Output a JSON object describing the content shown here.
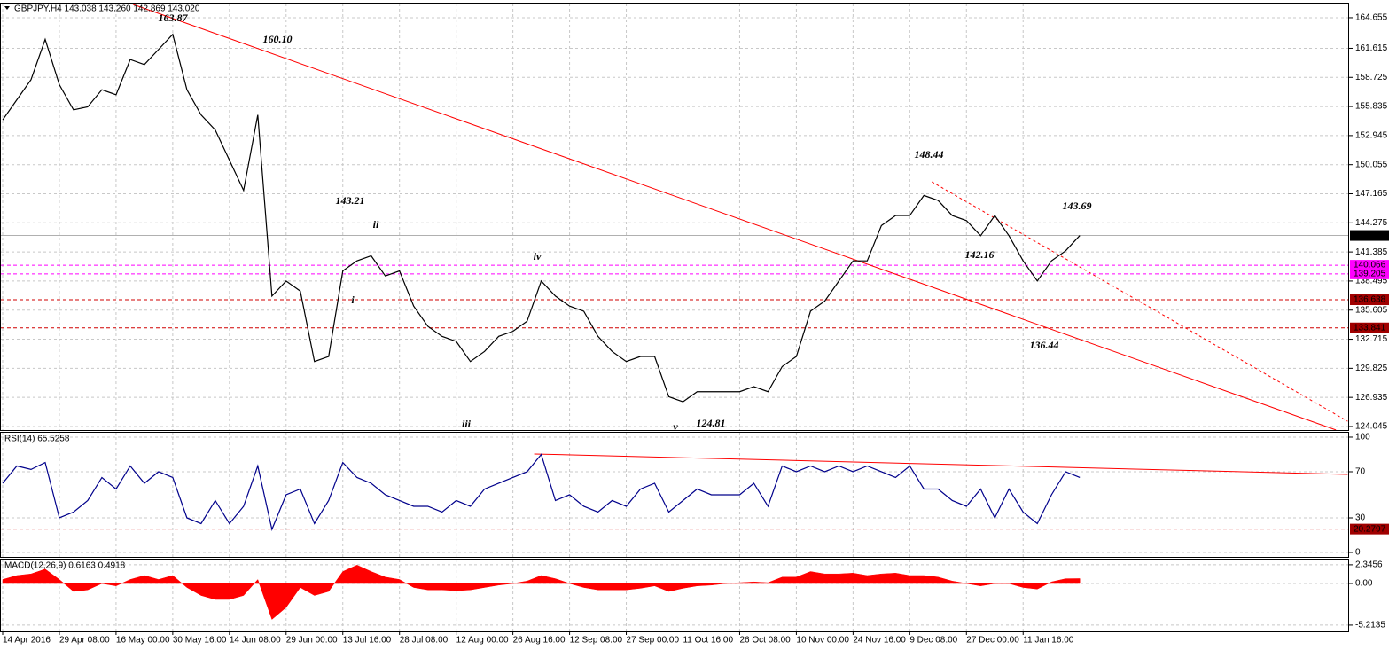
{
  "chart_data": [
    {
      "type": "line",
      "title": "GBPJPY,H4  143.038 143.260 142.869 143.020",
      "color": "#000000",
      "values": [
        154.5,
        156.5,
        158.5,
        162.5,
        158,
        155.5,
        155.8,
        157.5,
        157,
        160.5,
        160,
        161.5,
        163,
        157.5,
        155,
        153.5,
        150.5,
        147.5,
        155,
        137,
        138.5,
        137.5,
        130.5,
        131,
        139.5,
        140.5,
        141,
        139,
        139.5,
        136,
        134,
        133,
        132.5,
        130.5,
        131.5,
        133,
        133.5,
        134.5,
        138.5,
        137,
        136,
        135.5,
        133,
        131.5,
        130.5,
        131,
        131,
        127,
        126.5,
        127.5,
        127.5,
        127.5,
        127.5,
        128,
        127.5,
        130,
        131,
        135.5,
        136.5,
        138.5,
        140.5,
        140.5,
        144,
        145,
        145,
        147,
        146.5,
        145,
        144.5,
        143,
        145,
        143,
        140.5,
        138.5,
        140.5,
        141.5,
        143.02
      ],
      "xlim": [
        0,
        95
      ],
      "xticks": [
        {
          "value": 0,
          "label": "14 Apr 2016"
        },
        {
          "value": 4,
          "label": "29 Apr 08:00"
        },
        {
          "value": 8,
          "label": "16 May 00:00"
        },
        {
          "value": 12,
          "label": "30 May 16:00"
        },
        {
          "value": 16,
          "label": "14 Jun 08:00"
        },
        {
          "value": 20,
          "label": "29 Jun 00:00"
        },
        {
          "value": 24,
          "label": "13 Jul 16:00"
        },
        {
          "value": 28,
          "label": "28 Jul 08:00"
        },
        {
          "value": 32,
          "label": "12 Aug 00:00"
        },
        {
          "value": 36,
          "label": "26 Aug 16:00"
        },
        {
          "value": 40,
          "label": "12 Sep 08:00"
        },
        {
          "value": 44,
          "label": "27 Sep 00:00"
        },
        {
          "value": 48,
          "label": "11 Oct 16:00"
        },
        {
          "value": 52,
          "label": "26 Oct 08:00"
        },
        {
          "value": 56,
          "label": "10 Nov 00:00"
        },
        {
          "value": 60,
          "label": "24 Nov 16:00"
        },
        {
          "value": 64,
          "label": "9 Dec 08:00"
        },
        {
          "value": 68,
          "label": "27 Dec 00:00"
        },
        {
          "value": 72,
          "label": "11 Jan 16:00"
        }
      ],
      "ylim": [
        123.69,
        166.06
      ],
      "yticks": [
        164.655,
        161.615,
        158.725,
        155.835,
        152.945,
        150.055,
        147.165,
        144.275,
        141.385,
        138.495,
        135.605,
        132.715,
        129.825,
        126.935,
        124.045
      ],
      "grid": true,
      "levels": [
        {
          "value": 143.02,
          "label": "143.020",
          "color": "#b0b0b0",
          "bg": "#000000",
          "style": "solid"
        },
        {
          "value": 140.066,
          "color": "#ff00ff",
          "bg": "#ff00ff",
          "style": "dashed"
        },
        {
          "value": 139.205,
          "color": "#ff00ff",
          "bg": "#ff00ff",
          "style": "dashed"
        },
        {
          "value": 136.638,
          "color": "#d00000",
          "bg": "#a00000",
          "style": "dashed"
        },
        {
          "value": 133.841,
          "color": "#d00000",
          "bg": "#a00000",
          "style": "dashed"
        }
      ],
      "trendlines": [
        {
          "x": [
            9.19,
            94.07
          ],
          "y": [
            165.98,
            123.7
          ],
          "color": "#ff0000",
          "style": "solid"
        },
        {
          "x": [
            65.56,
            94.9
          ],
          "y": [
            148.35,
            124.56
          ],
          "color": "#ff0000",
          "style": "dashed"
        }
      ],
      "annotations": [
        {
          "text": "163.87",
          "color": "#b00000"
        },
        {
          "text": "160.10",
          "color": "#b00000"
        },
        {
          "text": "143.21",
          "color": "#b00000"
        },
        {
          "text": "ii",
          "color": "#b00000"
        },
        {
          "text": "i",
          "color": "#b00000"
        },
        {
          "text": "iv",
          "color": "#b00000"
        },
        {
          "text": "iii",
          "color": "#b00000"
        },
        {
          "text": "v",
          "color": "#b00000"
        },
        {
          "text": "124.81",
          "color": "#9a4fa8"
        },
        {
          "text": "148.44",
          "color": "#9a4fa8"
        },
        {
          "text": "143.69",
          "color": "#9a4fa8"
        },
        {
          "text": "142.16",
          "color": "#9a4fa8"
        },
        {
          "text": "136.44",
          "color": "#9a4fa8"
        }
      ]
    },
    {
      "type": "line",
      "title": "RSI(14) 65.5258",
      "color": "#00008b",
      "values": [
        60,
        75,
        72,
        78,
        30,
        35,
        45,
        65,
        55,
        75,
        60,
        70,
        65,
        30,
        25,
        45,
        25,
        40,
        75,
        20,
        50,
        55,
        25,
        45,
        78,
        65,
        60,
        50,
        45,
        40,
        40,
        35,
        45,
        40,
        55,
        60,
        65,
        70,
        85,
        45,
        50,
        40,
        35,
        45,
        40,
        55,
        60,
        35,
        45,
        55,
        50,
        50,
        50,
        60,
        40,
        75,
        70,
        75,
        70,
        75,
        70,
        75,
        70,
        65,
        75,
        55,
        55,
        45,
        40,
        55,
        30,
        55,
        35,
        25,
        50,
        70,
        65
      ],
      "ylim": [
        -3.85,
        104.6
      ],
      "yticks": [
        100,
        70,
        30,
        0
      ],
      "grid": true,
      "levels": [
        {
          "value": 20.2797,
          "color": "#d00000",
          "bg": "#a00000",
          "style": "dashed"
        }
      ],
      "trendlines": [
        {
          "x": [
            37.5,
            94.9
          ],
          "y": [
            85.4,
            67.7
          ],
          "color": "#ff0000",
          "style": "solid"
        }
      ]
    },
    {
      "type": "area",
      "title": "MACD(12,26,9) 0.6163 0.4918",
      "color": "#ff0000",
      "values": [
        0.5,
        1,
        1.2,
        1.8,
        0.5,
        -1,
        -0.8,
        0,
        -0.3,
        0.5,
        1,
        0.5,
        1,
        -0.5,
        -1.5,
        -2,
        -2,
        -1.5,
        0.5,
        -4.5,
        -3,
        -0.5,
        -1.5,
        -1,
        1.5,
        2.3,
        1.5,
        0.8,
        0.5,
        -0.5,
        -0.8,
        -0.8,
        -0.9,
        -0.8,
        -0.5,
        -0.2,
        0,
        0.3,
        1,
        0.6,
        0,
        -0.5,
        -0.8,
        -0.8,
        -0.8,
        -0.6,
        -0.3,
        -1,
        -0.6,
        -0.3,
        -0.2,
        0,
        0.1,
        0.2,
        0.1,
        0.8,
        0.8,
        1.5,
        1.2,
        1.2,
        1.3,
        1,
        1.2,
        1.3,
        1,
        1,
        0.8,
        0.3,
        0,
        -0.3,
        0,
        0,
        -0.5,
        -0.7,
        0.2,
        0.6,
        0.6163
      ],
      "ylim": [
        -6,
        3
      ],
      "yticks": [
        2.3456,
        {
          "value": 0,
          "label": "0.00"
        },
        -5.2135
      ],
      "grid": true
    }
  ]
}
